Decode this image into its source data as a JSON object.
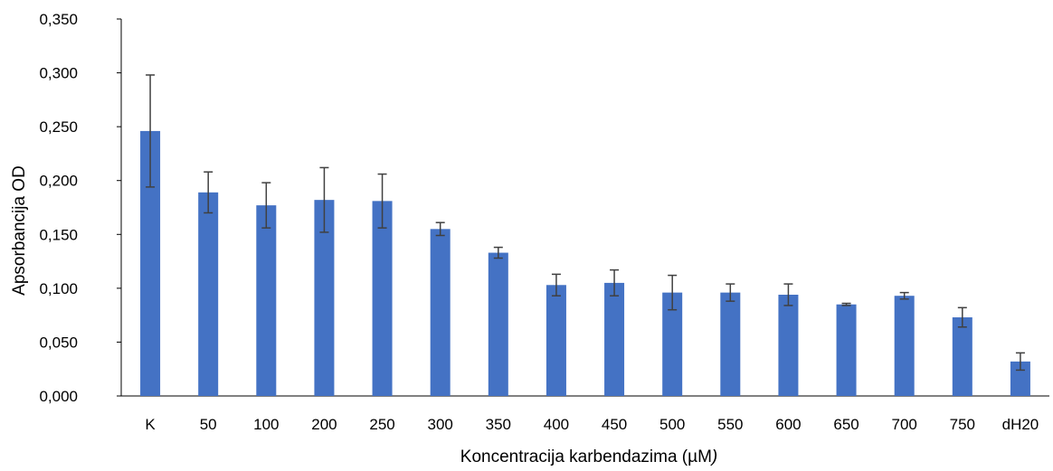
{
  "chart_data": {
    "type": "bar",
    "categories": [
      "K",
      "50",
      "100",
      "200",
      "250",
      "300",
      "350",
      "400",
      "450",
      "500",
      "550",
      "600",
      "650",
      "700",
      "750",
      "dH20"
    ],
    "series": [
      {
        "values": [
          0.246,
          0.189,
          0.177,
          0.182,
          0.181,
          0.155,
          0.133,
          0.103,
          0.105,
          0.096,
          0.096,
          0.094,
          0.085,
          0.093,
          0.073,
          0.032
        ],
        "errors": [
          0.052,
          0.019,
          0.021,
          0.03,
          0.025,
          0.006,
          0.005,
          0.01,
          0.012,
          0.016,
          0.008,
          0.01,
          0.001,
          0.003,
          0.009,
          0.008
        ]
      }
    ],
    "title": "",
    "xlabel": "Koncentracija  karbendazima (µM",
    "xlabel_suffix": ")",
    "ylabel": "Apsorbancija OD",
    "ylim": [
      0,
      0.35
    ],
    "yticks": [
      "0,000",
      "0,050",
      "0,100",
      "0,150",
      "0,200",
      "0,250",
      "0,300",
      "0,350"
    ],
    "ytick_values": [
      0,
      0.05,
      0.1,
      0.15,
      0.2,
      0.25,
      0.3,
      0.35
    ],
    "grid": false,
    "legend": "none",
    "colors": {
      "bar": "#4472C4",
      "error_bar": "#404040",
      "axis": "#000000"
    }
  }
}
